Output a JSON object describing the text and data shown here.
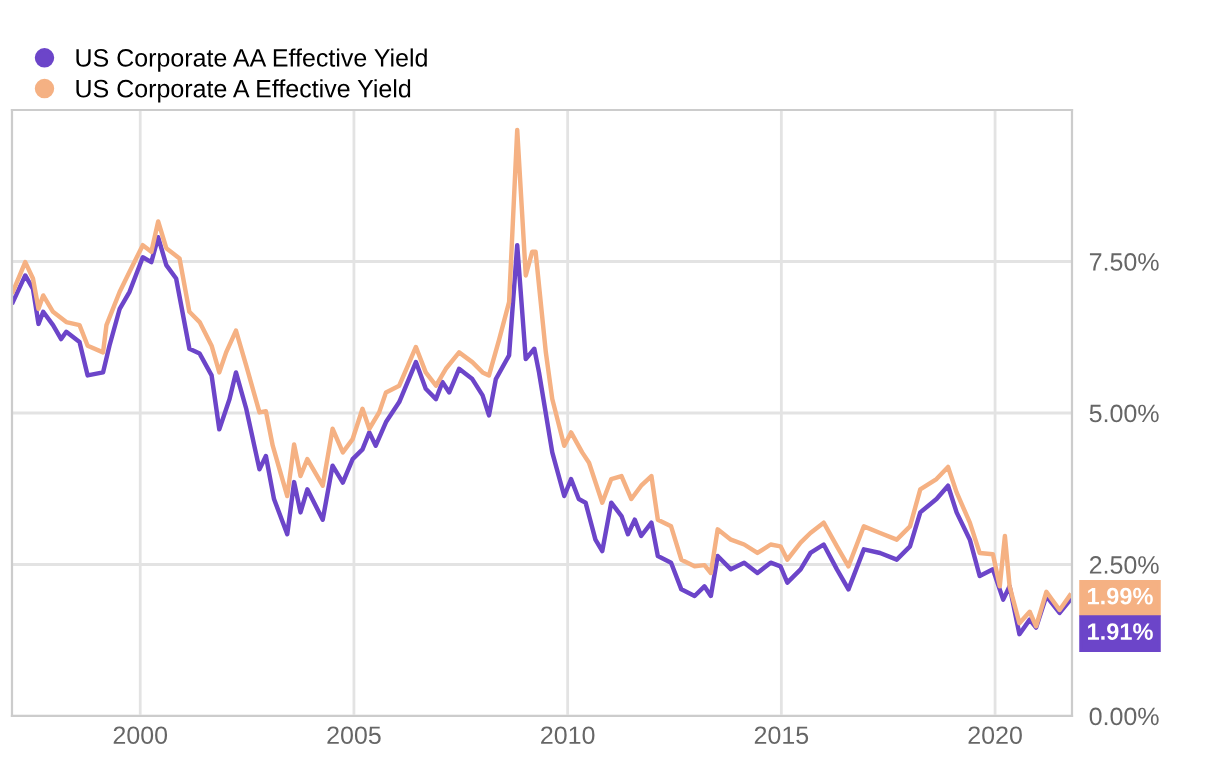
{
  "chart_data": {
    "type": "line",
    "legend": "top left",
    "grid": true,
    "xlim": [
      1997.0,
      2021.8
    ],
    "xticks": [
      2000,
      2005,
      2010,
      2015,
      2020
    ],
    "ylim": [
      0,
      10
    ],
    "yticks": [
      {
        "value": 0,
        "label": "0.00%"
      },
      {
        "value": 2.5,
        "label": "2.50%"
      },
      {
        "value": 5,
        "label": "5.00%"
      },
      {
        "value": 7.5,
        "label": "7.50%"
      }
    ],
    "series": [
      {
        "name": "US Corporate AA Effective Yield",
        "color": "#6c45c9",
        "x": [
          1997.02,
          1997.31,
          1997.49,
          1997.62,
          1997.73,
          1997.96,
          1998.15,
          1998.27,
          1998.58,
          1998.77,
          1999.13,
          1999.28,
          1999.52,
          1999.75,
          2000.06,
          2000.26,
          2000.42,
          2000.61,
          2000.84,
          2001.15,
          2001.39,
          2001.67,
          2001.85,
          2002.09,
          2002.24,
          2002.48,
          2002.79,
          2002.94,
          2003.13,
          2003.44,
          2003.6,
          2003.75,
          2003.91,
          2004.27,
          2004.5,
          2004.74,
          2004.97,
          2005.2,
          2005.36,
          2005.51,
          2005.75,
          2006.06,
          2006.45,
          2006.68,
          2006.92,
          2007.07,
          2007.23,
          2007.46,
          2007.77,
          2008.01,
          2008.16,
          2008.32,
          2008.63,
          2008.82,
          2009.02,
          2009.22,
          2009.33,
          2009.64,
          2009.92,
          2010.08,
          2010.26,
          2010.42,
          2010.65,
          2010.81,
          2011.02,
          2011.26,
          2011.41,
          2011.57,
          2011.72,
          2011.96,
          2012.11,
          2012.42,
          2012.66,
          2012.97,
          2013.2,
          2013.35,
          2013.51,
          2013.82,
          2014.13,
          2014.44,
          2014.75,
          2014.98,
          2015.14,
          2015.45,
          2015.68,
          2015.99,
          2016.3,
          2016.57,
          2016.93,
          2017.31,
          2017.7,
          2018.01,
          2018.25,
          2018.63,
          2018.9,
          2019.1,
          2019.41,
          2019.64,
          2019.95,
          2020.19,
          2020.34,
          2020.57,
          2020.81,
          2020.96,
          2021.2,
          2021.51,
          2021.75
        ],
        "values": [
          6.83,
          7.27,
          7.05,
          6.47,
          6.67,
          6.45,
          6.22,
          6.34,
          6.17,
          5.62,
          5.67,
          6.11,
          6.72,
          7.0,
          7.57,
          7.49,
          7.9,
          7.44,
          7.22,
          6.06,
          5.98,
          5.62,
          4.73,
          5.23,
          5.67,
          5.07,
          4.07,
          4.29,
          3.58,
          3.0,
          3.86,
          3.36,
          3.74,
          3.24,
          4.13,
          3.85,
          4.24,
          4.4,
          4.68,
          4.46,
          4.85,
          5.18,
          5.84,
          5.4,
          5.23,
          5.51,
          5.34,
          5.73,
          5.56,
          5.29,
          4.96,
          5.56,
          5.95,
          7.77,
          5.89,
          6.06,
          5.67,
          4.35,
          3.63,
          3.91,
          3.58,
          3.52,
          2.91,
          2.72,
          3.52,
          3.3,
          3.0,
          3.24,
          2.97,
          3.19,
          2.64,
          2.53,
          2.09,
          1.98,
          2.14,
          1.98,
          2.64,
          2.42,
          2.53,
          2.36,
          2.53,
          2.47,
          2.2,
          2.42,
          2.69,
          2.83,
          2.42,
          2.09,
          2.75,
          2.69,
          2.58,
          2.8,
          3.36,
          3.58,
          3.8,
          3.36,
          2.91,
          2.31,
          2.42,
          1.92,
          2.14,
          1.35,
          1.59,
          1.46,
          1.98,
          1.7,
          1.91
        ]
      },
      {
        "name": "US Corporate A Effective Yield",
        "color": "#f5b183",
        "x": [
          1997.02,
          1997.31,
          1997.49,
          1997.62,
          1997.73,
          1997.96,
          1998.27,
          1998.58,
          1998.77,
          1999.13,
          1999.21,
          1999.52,
          1999.75,
          2000.06,
          2000.26,
          2000.42,
          2000.61,
          2000.92,
          2001.15,
          2001.39,
          2001.67,
          2001.85,
          2002.01,
          2002.24,
          2002.48,
          2002.79,
          2002.94,
          2003.1,
          2003.44,
          2003.6,
          2003.75,
          2003.91,
          2004.27,
          2004.5,
          2004.74,
          2004.97,
          2005.2,
          2005.36,
          2005.59,
          2005.75,
          2006.06,
          2006.45,
          2006.68,
          2006.92,
          2007.15,
          2007.46,
          2007.77,
          2008.01,
          2008.16,
          2008.4,
          2008.63,
          2008.82,
          2009.02,
          2009.17,
          2009.25,
          2009.49,
          2009.64,
          2009.92,
          2010.08,
          2010.34,
          2010.5,
          2010.81,
          2011.02,
          2011.26,
          2011.49,
          2011.72,
          2011.96,
          2012.11,
          2012.42,
          2012.66,
          2012.97,
          2013.2,
          2013.35,
          2013.51,
          2013.82,
          2014.13,
          2014.44,
          2014.75,
          2014.98,
          2015.14,
          2015.45,
          2015.68,
          2015.99,
          2016.3,
          2016.57,
          2016.93,
          2017.31,
          2017.7,
          2018.01,
          2018.25,
          2018.63,
          2018.9,
          2019.1,
          2019.41,
          2019.64,
          2019.95,
          2020.11,
          2020.23,
          2020.34,
          2020.57,
          2020.81,
          2020.96,
          2021.2,
          2021.51,
          2021.75
        ],
        "values": [
          7.0,
          7.49,
          7.22,
          6.72,
          6.94,
          6.67,
          6.5,
          6.45,
          6.11,
          6.0,
          6.45,
          7.0,
          7.33,
          7.77,
          7.66,
          8.16,
          7.72,
          7.55,
          6.67,
          6.5,
          6.11,
          5.67,
          6.0,
          6.36,
          5.78,
          5.01,
          5.03,
          4.46,
          3.63,
          4.48,
          3.96,
          4.24,
          3.8,
          4.74,
          4.35,
          4.57,
          5.07,
          4.74,
          5.01,
          5.34,
          5.45,
          6.09,
          5.67,
          5.45,
          5.73,
          6.0,
          5.84,
          5.67,
          5.62,
          6.22,
          6.83,
          9.67,
          7.27,
          7.66,
          7.66,
          6.0,
          5.23,
          4.46,
          4.68,
          4.35,
          4.18,
          3.52,
          3.91,
          3.96,
          3.58,
          3.8,
          3.96,
          3.24,
          3.13,
          2.58,
          2.47,
          2.49,
          2.36,
          3.08,
          2.91,
          2.83,
          2.69,
          2.83,
          2.8,
          2.58,
          2.86,
          3.02,
          3.19,
          2.8,
          2.47,
          3.13,
          3.02,
          2.91,
          3.13,
          3.74,
          3.91,
          4.11,
          3.69,
          3.19,
          2.69,
          2.67,
          2.14,
          2.97,
          2.14,
          1.53,
          1.72,
          1.48,
          2.05,
          1.75,
          1.99
        ]
      }
    ],
    "annotations": [
      {
        "text": "1.99%",
        "x": 2021.75,
        "y": 1.99
      },
      {
        "text": "1.91%",
        "x": 2021.75,
        "y": 1.91
      }
    ]
  }
}
